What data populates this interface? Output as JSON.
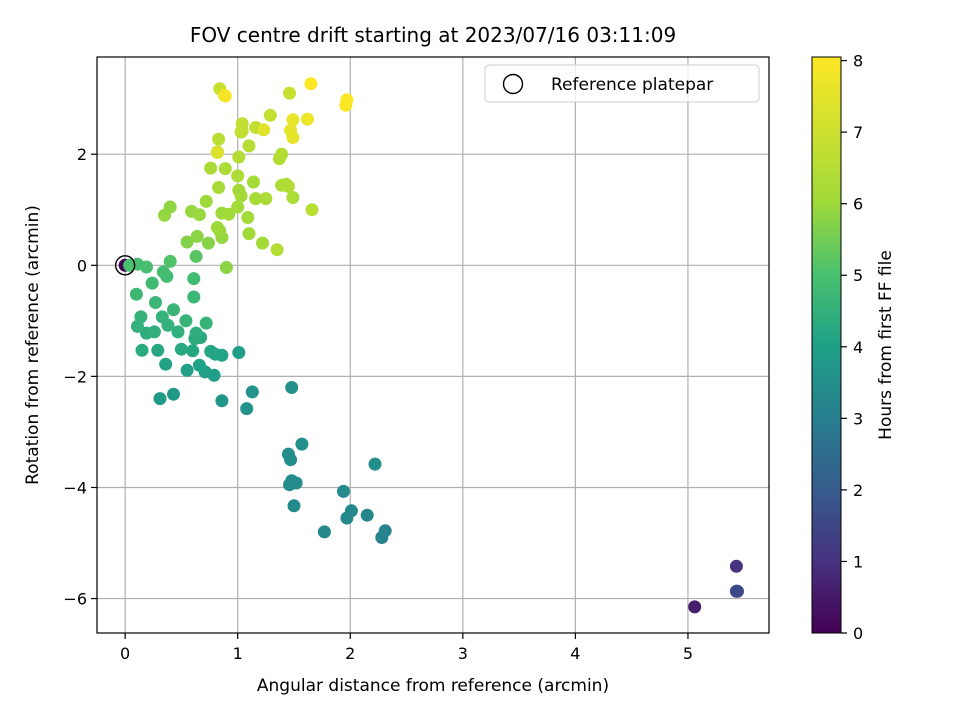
{
  "chart_data": {
    "type": "scatter",
    "title": "FOV centre drift starting at 2023/07/16 03:11:09",
    "xlabel": "Angular distance from reference (arcmin)",
    "ylabel": "Rotation from reference (arcmin)",
    "xlim": [
      -0.25,
      5.72
    ],
    "ylim": [
      -6.62,
      3.75
    ],
    "xticks": [
      0,
      1,
      2,
      3,
      4,
      5
    ],
    "yticks": [
      -6,
      -4,
      -2,
      0,
      2
    ],
    "grid": true,
    "colormap": "viridis",
    "colorbar": {
      "label": "Hours from first FF file",
      "range": [
        0,
        8.05
      ],
      "ticks": [
        0,
        1,
        2,
        3,
        4,
        5,
        6,
        7,
        8
      ]
    },
    "legend": {
      "position": "top-right",
      "entries": [
        {
          "label": "Reference platepar",
          "marker": "hollow-circle"
        }
      ]
    },
    "reference_point": [
      0,
      0
    ],
    "points": [
      [
        0.0,
        0.0,
        0.02
      ],
      [
        5.06,
        -6.15,
        0.6
      ],
      [
        5.43,
        -5.42,
        1.0
      ],
      [
        5.43,
        -5.87,
        1.5
      ],
      [
        5.44,
        -5.87,
        1.55
      ],
      [
        2.28,
        -4.9,
        3.15
      ],
      [
        2.31,
        -4.78,
        3.2
      ],
      [
        2.15,
        -4.5,
        3.25
      ],
      [
        2.01,
        -4.42,
        3.3
      ],
      [
        1.97,
        -4.55,
        3.32
      ],
      [
        1.77,
        -4.8,
        3.3
      ],
      [
        1.94,
        -4.07,
        3.35
      ],
      [
        1.52,
        -3.92,
        3.4
      ],
      [
        1.48,
        -3.88,
        3.38
      ],
      [
        1.46,
        -3.95,
        3.42
      ],
      [
        1.5,
        -4.33,
        3.36
      ],
      [
        1.45,
        -3.4,
        3.45
      ],
      [
        1.47,
        -3.5,
        3.4
      ],
      [
        1.57,
        -3.22,
        3.48
      ],
      [
        2.22,
        -3.58,
        3.5
      ],
      [
        1.48,
        -2.2,
        3.55
      ],
      [
        1.08,
        -2.58,
        3.6
      ],
      [
        1.13,
        -2.28,
        3.65
      ],
      [
        0.86,
        -2.44,
        3.7
      ],
      [
        0.31,
        -2.4,
        3.85
      ],
      [
        0.43,
        -2.32,
        3.8
      ],
      [
        1.01,
        -1.57,
        3.9
      ],
      [
        0.55,
        -1.89,
        4.0
      ],
      [
        0.71,
        -1.92,
        4.0
      ],
      [
        0.79,
        -1.98,
        3.95
      ],
      [
        0.36,
        -1.78,
        4.1
      ],
      [
        0.66,
        -1.8,
        4.05
      ],
      [
        0.86,
        -1.62,
        4.1
      ],
      [
        0.8,
        -1.6,
        4.1
      ],
      [
        0.76,
        -1.55,
        4.15
      ],
      [
        0.6,
        -1.54,
        4.2
      ],
      [
        0.5,
        -1.51,
        4.25
      ],
      [
        0.29,
        -1.53,
        4.2
      ],
      [
        0.15,
        -1.53,
        4.3
      ],
      [
        0.67,
        -1.3,
        4.3
      ],
      [
        0.62,
        -1.32,
        4.35
      ],
      [
        0.63,
        -1.22,
        4.4
      ],
      [
        0.19,
        -1.22,
        4.4
      ],
      [
        0.26,
        -1.2,
        4.45
      ],
      [
        0.47,
        -1.2,
        4.45
      ],
      [
        0.11,
        -1.1,
        4.5
      ],
      [
        0.38,
        -1.08,
        4.5
      ],
      [
        0.33,
        -0.93,
        4.55
      ],
      [
        0.14,
        -0.93,
        4.55
      ],
      [
        0.54,
        -1.0,
        4.6
      ],
      [
        0.72,
        -1.04,
        4.6
      ],
      [
        0.43,
        -0.8,
        4.65
      ],
      [
        0.27,
        -0.67,
        4.7
      ],
      [
        0.61,
        -0.57,
        4.7
      ],
      [
        0.1,
        -0.52,
        4.75
      ],
      [
        0.24,
        -0.32,
        4.8
      ],
      [
        0.61,
        -0.24,
        4.85
      ],
      [
        0.37,
        -0.2,
        4.85
      ],
      [
        0.34,
        -0.12,
        4.9
      ],
      [
        0.19,
        -0.03,
        4.95
      ],
      [
        0.11,
        0.02,
        4.95
      ],
      [
        0.04,
        0.0,
        5.0
      ],
      [
        0.4,
        0.07,
        5.1
      ],
      [
        0.63,
        0.16,
        5.2
      ],
      [
        0.9,
        -0.04,
        5.8
      ],
      [
        0.55,
        0.42,
        5.7
      ],
      [
        0.64,
        0.52,
        5.8
      ],
      [
        0.74,
        0.4,
        5.75
      ],
      [
        0.86,
        0.5,
        5.9
      ],
      [
        0.84,
        0.62,
        5.95
      ],
      [
        0.82,
        0.68,
        6.0
      ],
      [
        1.1,
        0.57,
        6.05
      ],
      [
        1.22,
        0.4,
        6.1
      ],
      [
        1.35,
        0.28,
        6.5
      ],
      [
        0.35,
        0.9,
        5.9
      ],
      [
        0.4,
        1.05,
        5.85
      ],
      [
        0.59,
        0.97,
        5.9
      ],
      [
        0.66,
        0.91,
        5.95
      ],
      [
        0.86,
        0.94,
        6.0
      ],
      [
        0.92,
        0.92,
        6.05
      ],
      [
        1.09,
        0.86,
        6.1
      ],
      [
        1.0,
        1.05,
        6.05
      ],
      [
        1.03,
        1.25,
        6.15
      ],
      [
        0.72,
        1.15,
        6.0
      ],
      [
        1.01,
        1.35,
        6.1
      ],
      [
        1.14,
        1.5,
        6.15
      ],
      [
        1.16,
        1.2,
        6.2
      ],
      [
        1.25,
        1.2,
        6.25
      ],
      [
        0.83,
        1.4,
        6.2
      ],
      [
        1.49,
        1.22,
        6.3
      ],
      [
        1.39,
        1.44,
        6.35
      ],
      [
        1.43,
        1.46,
        6.4
      ],
      [
        1.45,
        1.42,
        6.4
      ],
      [
        1.66,
        1.0,
        6.6
      ],
      [
        1.0,
        1.61,
        6.3
      ],
      [
        0.76,
        1.75,
        6.25
      ],
      [
        0.89,
        1.74,
        6.3
      ],
      [
        1.37,
        1.92,
        6.4
      ],
      [
        1.39,
        2.0,
        6.45
      ],
      [
        1.01,
        1.95,
        6.45
      ],
      [
        1.1,
        2.15,
        6.5
      ],
      [
        0.82,
        2.04,
        6.55
      ],
      [
        0.83,
        2.27,
        6.6
      ],
      [
        1.04,
        2.42,
        6.7
      ],
      [
        1.16,
        2.48,
        6.7
      ],
      [
        1.04,
        2.55,
        6.75
      ],
      [
        1.29,
        2.7,
        6.8
      ],
      [
        1.46,
        3.1,
        6.9
      ],
      [
        0.84,
        3.18,
        6.9
      ],
      [
        1.03,
        2.4,
        6.75
      ],
      [
        0.82,
        2.03,
        7.3
      ],
      [
        1.23,
        2.44,
        7.4
      ],
      [
        1.47,
        2.43,
        7.5
      ],
      [
        1.49,
        2.3,
        7.55
      ],
      [
        1.49,
        2.62,
        7.6
      ],
      [
        1.62,
        2.63,
        7.7
      ],
      [
        0.88,
        3.06,
        7.8
      ],
      [
        0.89,
        3.05,
        7.85
      ],
      [
        1.96,
        2.88,
        8.0
      ],
      [
        1.97,
        2.98,
        8.02
      ],
      [
        1.65,
        3.27,
        8.05
      ]
    ]
  }
}
